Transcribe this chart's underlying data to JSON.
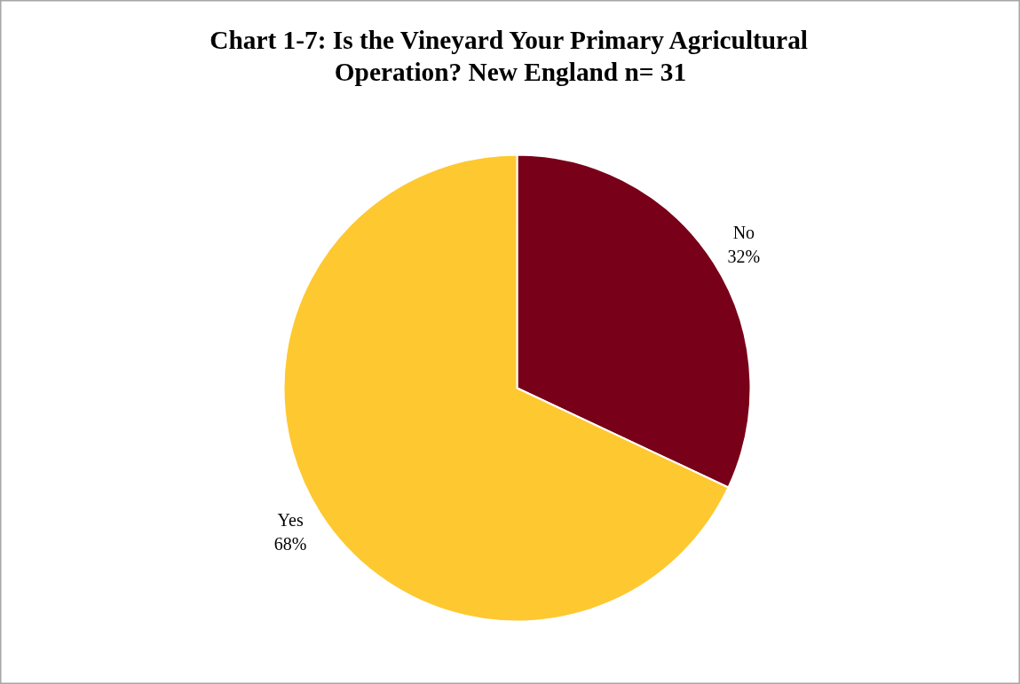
{
  "chart_data": {
    "type": "pie",
    "title": "Chart 1-7: Is the Vineyard Your Primary Agricultural Operation? New England n= 31",
    "categories": [
      "No",
      "Yes"
    ],
    "values": [
      32,
      68
    ],
    "colors": [
      "#780019",
      "#fec830"
    ],
    "value_labels": [
      "32%",
      "68%"
    ]
  }
}
